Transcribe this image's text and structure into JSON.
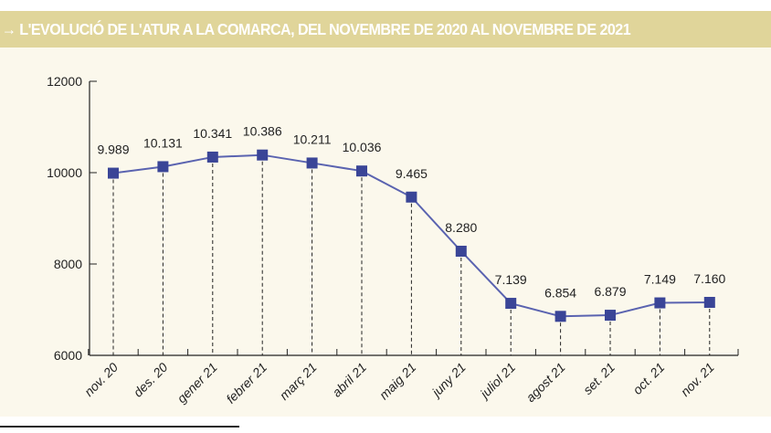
{
  "chart_data": {
    "type": "line",
    "title": "→ L'EVOLUCIÓ DE L'ATUR A LA COMARCA, DEL NOVEMBRE DE 2020 AL NOVEMBRE DE 2021",
    "xlabel": "",
    "ylabel": "",
    "ylim": [
      6000,
      12000
    ],
    "yticks": [
      "6000",
      "8000",
      "10000",
      "12000"
    ],
    "grid": false,
    "categories": [
      "nov. 20",
      "des. 20",
      "gener 21",
      "febrer 21",
      "març 21",
      "abril 21",
      "maig 21",
      "juny 21",
      "juliol 21",
      "agost 21",
      "set. 21",
      "oct. 21",
      "nov. 21"
    ],
    "series": [
      {
        "name": "Atur",
        "values": [
          9989,
          10131,
          10341,
          10386,
          10211,
          10036,
          9465,
          8280,
          7139,
          6854,
          6879,
          7149,
          7160
        ],
        "labels": [
          "9.989",
          "10.131",
          "10.341",
          "10.386",
          "10.211",
          "10.036",
          "9.465",
          "8.280",
          "7.139",
          "6.854",
          "6.879",
          "7.149",
          "7.160"
        ]
      }
    ],
    "colors": {
      "line": "#5a63b0",
      "marker": "#3a4597",
      "header": "#e0d59a",
      "panel": "#fbf8ec"
    }
  }
}
